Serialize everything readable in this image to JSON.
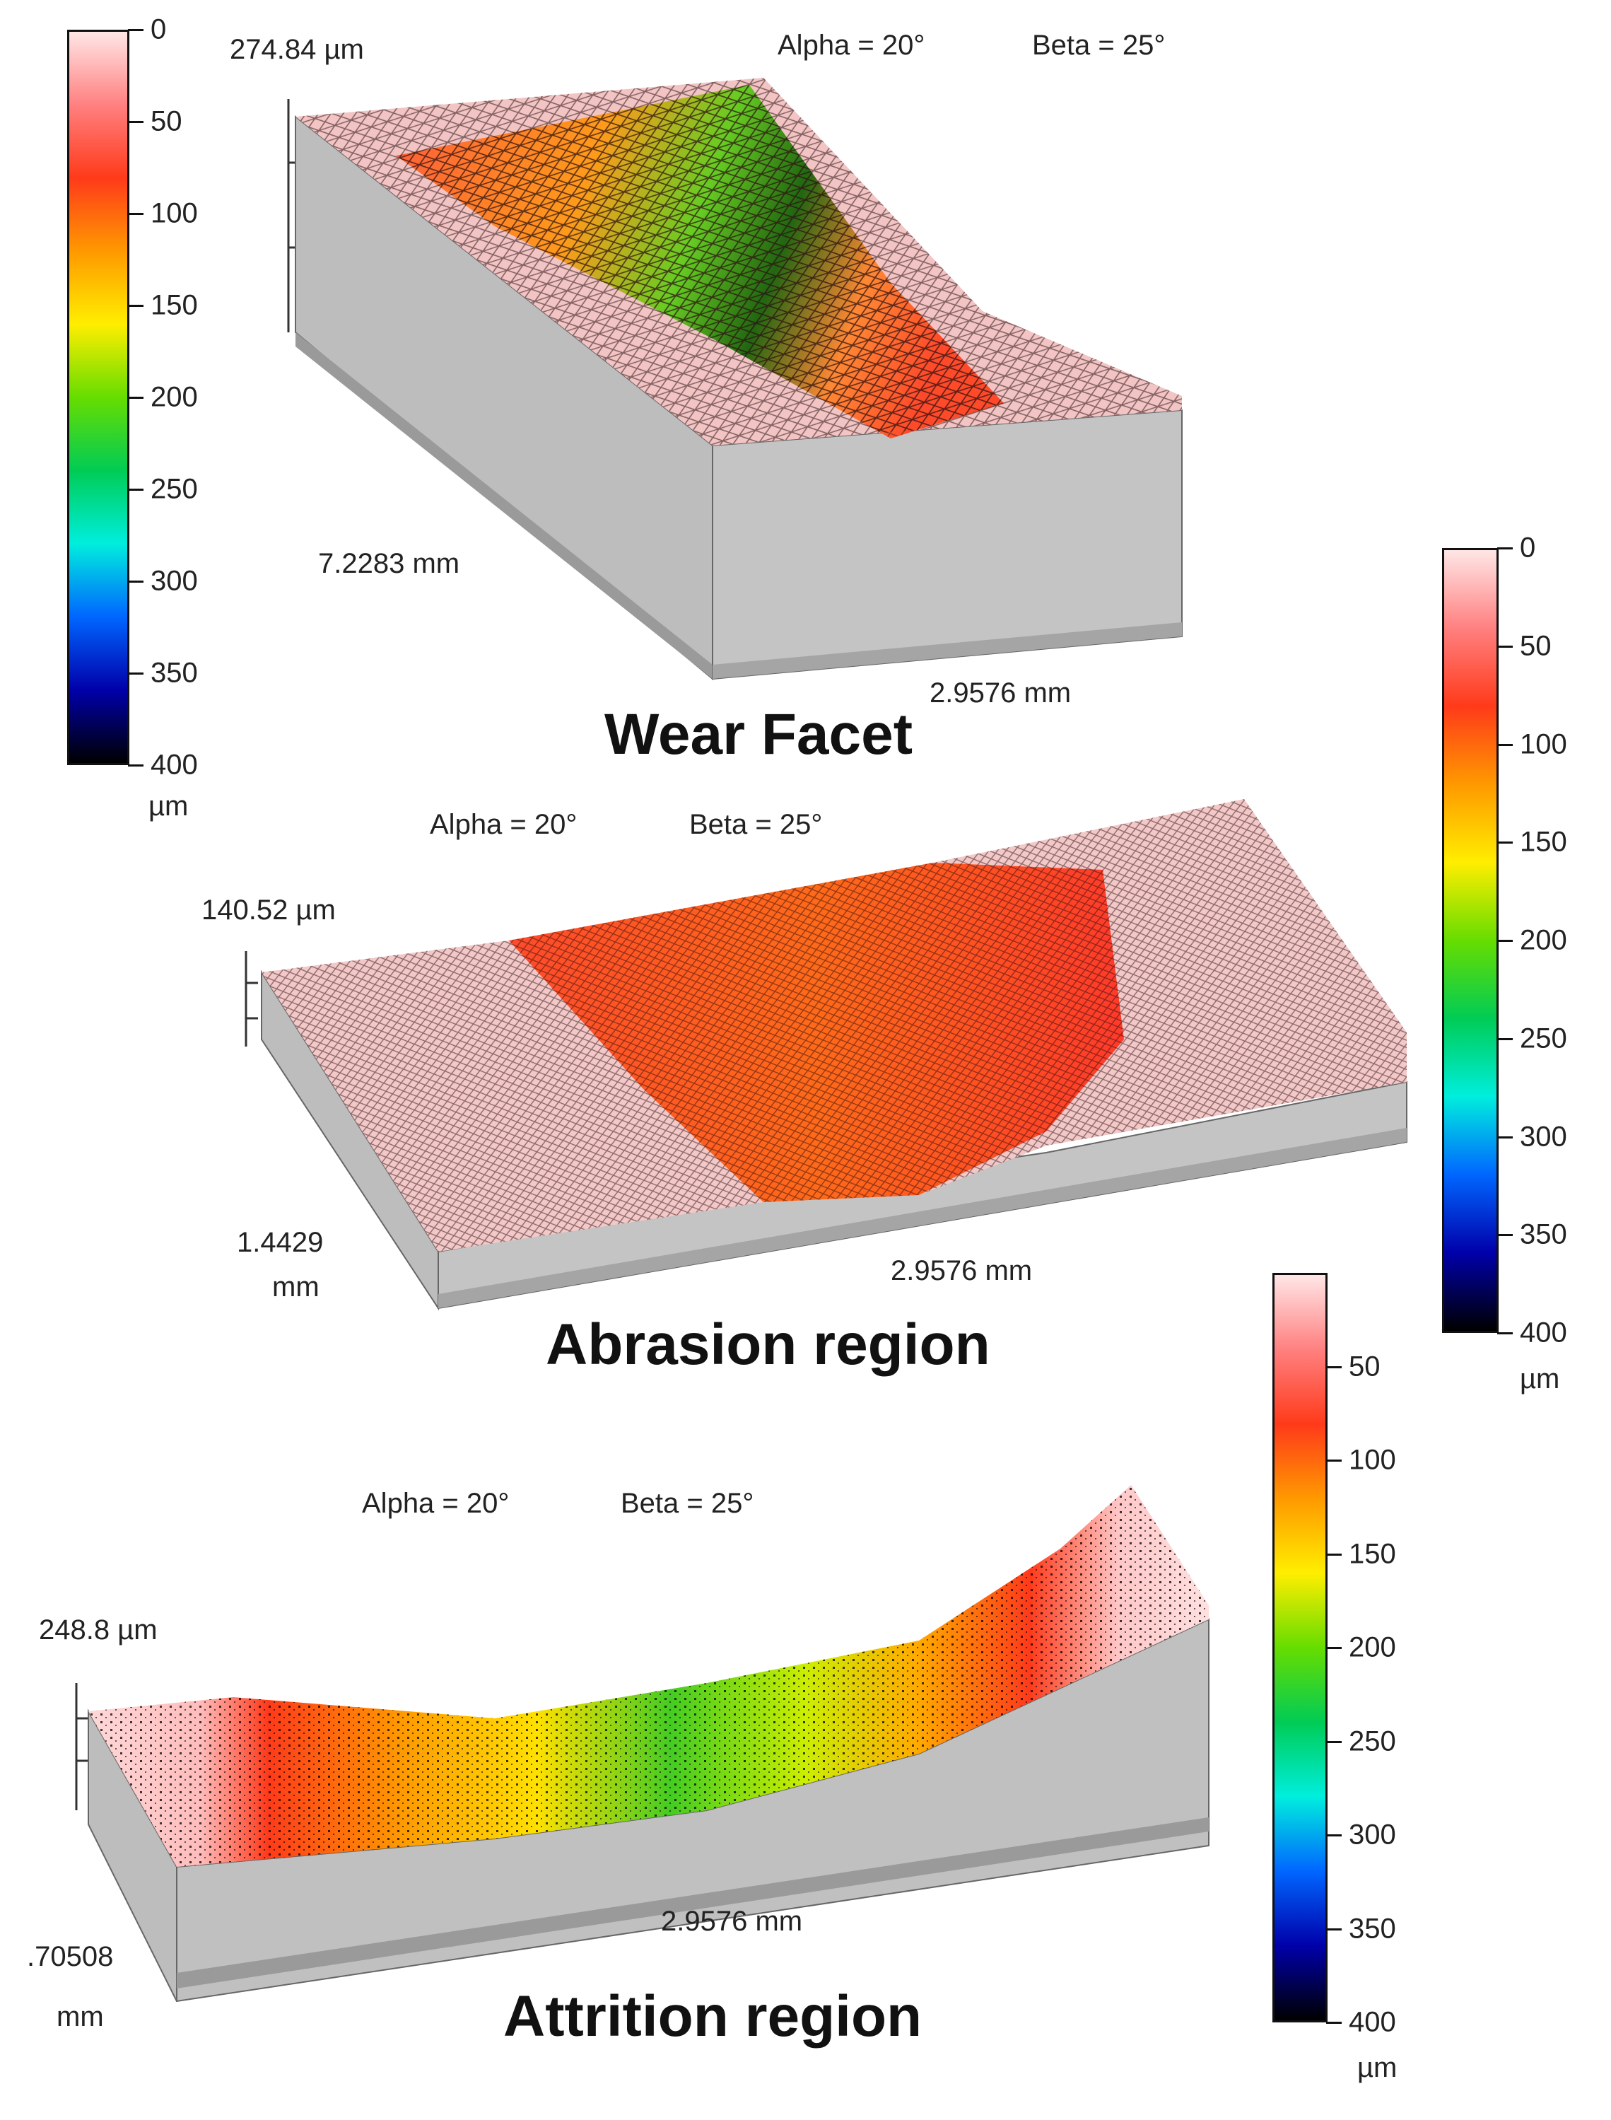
{
  "colorbar_ticks": [
    "0",
    "50",
    "100",
    "150",
    "200",
    "250",
    "300",
    "350",
    "400"
  ],
  "colorbar_ticks_short": [
    "50",
    "100",
    "150",
    "200",
    "250",
    "300",
    "350",
    "400"
  ],
  "colorbar_unit": "µm",
  "colormap": [
    "#ffe6e6",
    "#ff8080",
    "#ff3a1a",
    "#ff9900",
    "#ffee00",
    "#66dd00",
    "#00cc55",
    "#00eedd",
    "#0066ff",
    "#0000aa",
    "#000000"
  ],
  "panels": {
    "wear_facet": {
      "title": "Wear Facet",
      "height_label": "274.84 µm",
      "alpha": "Alpha = 20°",
      "beta": "Beta = 25°",
      "depth_label": "7.2283 mm",
      "width_label": "2.9576 mm"
    },
    "abrasion": {
      "title": "Abrasion region",
      "height_label": "140.52 µm",
      "alpha": "Alpha = 20°",
      "beta": "Beta = 25°",
      "depth_label_1": "1.4429",
      "depth_label_2": "mm",
      "width_label": "2.9576 mm"
    },
    "attrition": {
      "title": "Attrition region",
      "height_label": "248.8 µm",
      "alpha": "Alpha = 20°",
      "beta": "Beta = 25°",
      "depth_label_1": ".70508",
      "depth_label_2": "mm",
      "width_label": "2.9576 mm"
    }
  }
}
